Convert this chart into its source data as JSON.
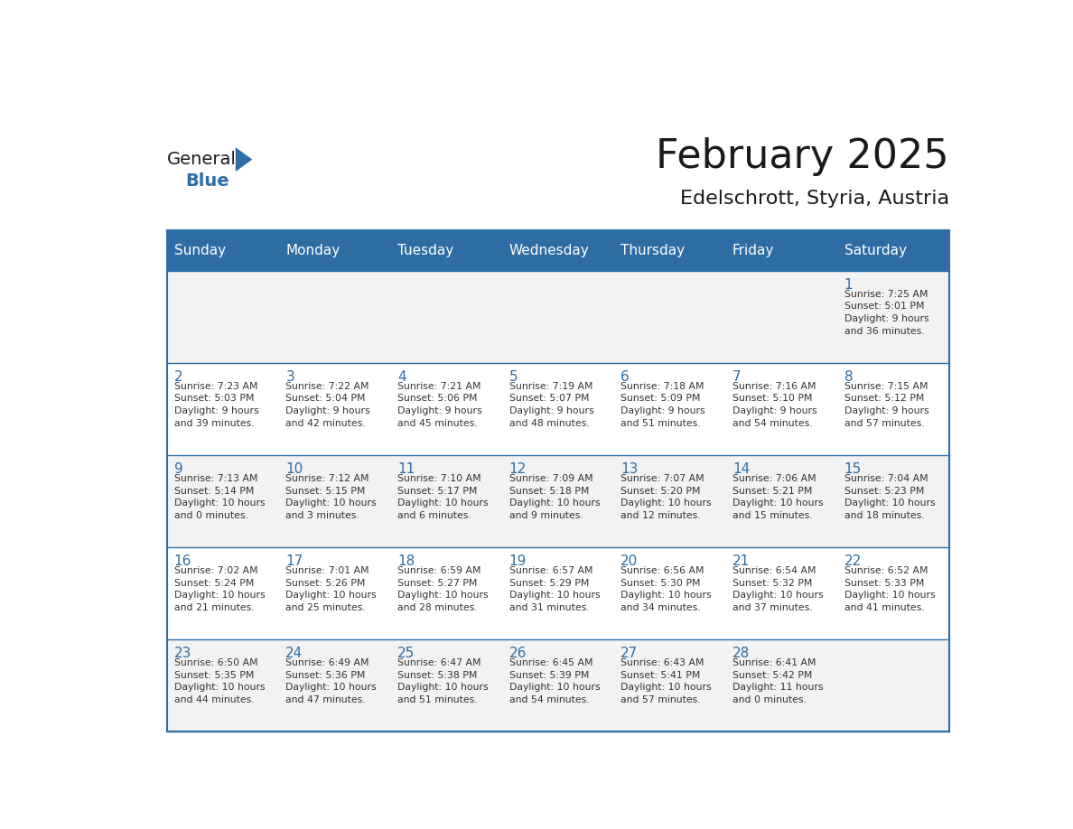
{
  "title": "February 2025",
  "subtitle": "Edelschrott, Styria, Austria",
  "header_bg": "#2E6DA4",
  "header_text_color": "#FFFFFF",
  "cell_bg_odd": "#F2F2F2",
  "cell_bg_even": "#FFFFFF",
  "day_number_color": "#2E6DA4",
  "info_text_color": "#333333",
  "line_color": "#2E6DA4",
  "days_of_week": [
    "Sunday",
    "Monday",
    "Tuesday",
    "Wednesday",
    "Thursday",
    "Friday",
    "Saturday"
  ],
  "weeks": [
    [
      {
        "day": "",
        "info": ""
      },
      {
        "day": "",
        "info": ""
      },
      {
        "day": "",
        "info": ""
      },
      {
        "day": "",
        "info": ""
      },
      {
        "day": "",
        "info": ""
      },
      {
        "day": "",
        "info": ""
      },
      {
        "day": "1",
        "info": "Sunrise: 7:25 AM\nSunset: 5:01 PM\nDaylight: 9 hours\nand 36 minutes."
      }
    ],
    [
      {
        "day": "2",
        "info": "Sunrise: 7:23 AM\nSunset: 5:03 PM\nDaylight: 9 hours\nand 39 minutes."
      },
      {
        "day": "3",
        "info": "Sunrise: 7:22 AM\nSunset: 5:04 PM\nDaylight: 9 hours\nand 42 minutes."
      },
      {
        "day": "4",
        "info": "Sunrise: 7:21 AM\nSunset: 5:06 PM\nDaylight: 9 hours\nand 45 minutes."
      },
      {
        "day": "5",
        "info": "Sunrise: 7:19 AM\nSunset: 5:07 PM\nDaylight: 9 hours\nand 48 minutes."
      },
      {
        "day": "6",
        "info": "Sunrise: 7:18 AM\nSunset: 5:09 PM\nDaylight: 9 hours\nand 51 minutes."
      },
      {
        "day": "7",
        "info": "Sunrise: 7:16 AM\nSunset: 5:10 PM\nDaylight: 9 hours\nand 54 minutes."
      },
      {
        "day": "8",
        "info": "Sunrise: 7:15 AM\nSunset: 5:12 PM\nDaylight: 9 hours\nand 57 minutes."
      }
    ],
    [
      {
        "day": "9",
        "info": "Sunrise: 7:13 AM\nSunset: 5:14 PM\nDaylight: 10 hours\nand 0 minutes."
      },
      {
        "day": "10",
        "info": "Sunrise: 7:12 AM\nSunset: 5:15 PM\nDaylight: 10 hours\nand 3 minutes."
      },
      {
        "day": "11",
        "info": "Sunrise: 7:10 AM\nSunset: 5:17 PM\nDaylight: 10 hours\nand 6 minutes."
      },
      {
        "day": "12",
        "info": "Sunrise: 7:09 AM\nSunset: 5:18 PM\nDaylight: 10 hours\nand 9 minutes."
      },
      {
        "day": "13",
        "info": "Sunrise: 7:07 AM\nSunset: 5:20 PM\nDaylight: 10 hours\nand 12 minutes."
      },
      {
        "day": "14",
        "info": "Sunrise: 7:06 AM\nSunset: 5:21 PM\nDaylight: 10 hours\nand 15 minutes."
      },
      {
        "day": "15",
        "info": "Sunrise: 7:04 AM\nSunset: 5:23 PM\nDaylight: 10 hours\nand 18 minutes."
      }
    ],
    [
      {
        "day": "16",
        "info": "Sunrise: 7:02 AM\nSunset: 5:24 PM\nDaylight: 10 hours\nand 21 minutes."
      },
      {
        "day": "17",
        "info": "Sunrise: 7:01 AM\nSunset: 5:26 PM\nDaylight: 10 hours\nand 25 minutes."
      },
      {
        "day": "18",
        "info": "Sunrise: 6:59 AM\nSunset: 5:27 PM\nDaylight: 10 hours\nand 28 minutes."
      },
      {
        "day": "19",
        "info": "Sunrise: 6:57 AM\nSunset: 5:29 PM\nDaylight: 10 hours\nand 31 minutes."
      },
      {
        "day": "20",
        "info": "Sunrise: 6:56 AM\nSunset: 5:30 PM\nDaylight: 10 hours\nand 34 minutes."
      },
      {
        "day": "21",
        "info": "Sunrise: 6:54 AM\nSunset: 5:32 PM\nDaylight: 10 hours\nand 37 minutes."
      },
      {
        "day": "22",
        "info": "Sunrise: 6:52 AM\nSunset: 5:33 PM\nDaylight: 10 hours\nand 41 minutes."
      }
    ],
    [
      {
        "day": "23",
        "info": "Sunrise: 6:50 AM\nSunset: 5:35 PM\nDaylight: 10 hours\nand 44 minutes."
      },
      {
        "day": "24",
        "info": "Sunrise: 6:49 AM\nSunset: 5:36 PM\nDaylight: 10 hours\nand 47 minutes."
      },
      {
        "day": "25",
        "info": "Sunrise: 6:47 AM\nSunset: 5:38 PM\nDaylight: 10 hours\nand 51 minutes."
      },
      {
        "day": "26",
        "info": "Sunrise: 6:45 AM\nSunset: 5:39 PM\nDaylight: 10 hours\nand 54 minutes."
      },
      {
        "day": "27",
        "info": "Sunrise: 6:43 AM\nSunset: 5:41 PM\nDaylight: 10 hours\nand 57 minutes."
      },
      {
        "day": "28",
        "info": "Sunrise: 6:41 AM\nSunset: 5:42 PM\nDaylight: 11 hours\nand 0 minutes."
      },
      {
        "day": "",
        "info": ""
      }
    ]
  ],
  "logo_text_general": "General",
  "logo_text_blue": "Blue",
  "logo_color_general": "#1a1a1a",
  "logo_color_blue": "#2E6DA4",
  "logo_triangle_color": "#2E6DA4"
}
